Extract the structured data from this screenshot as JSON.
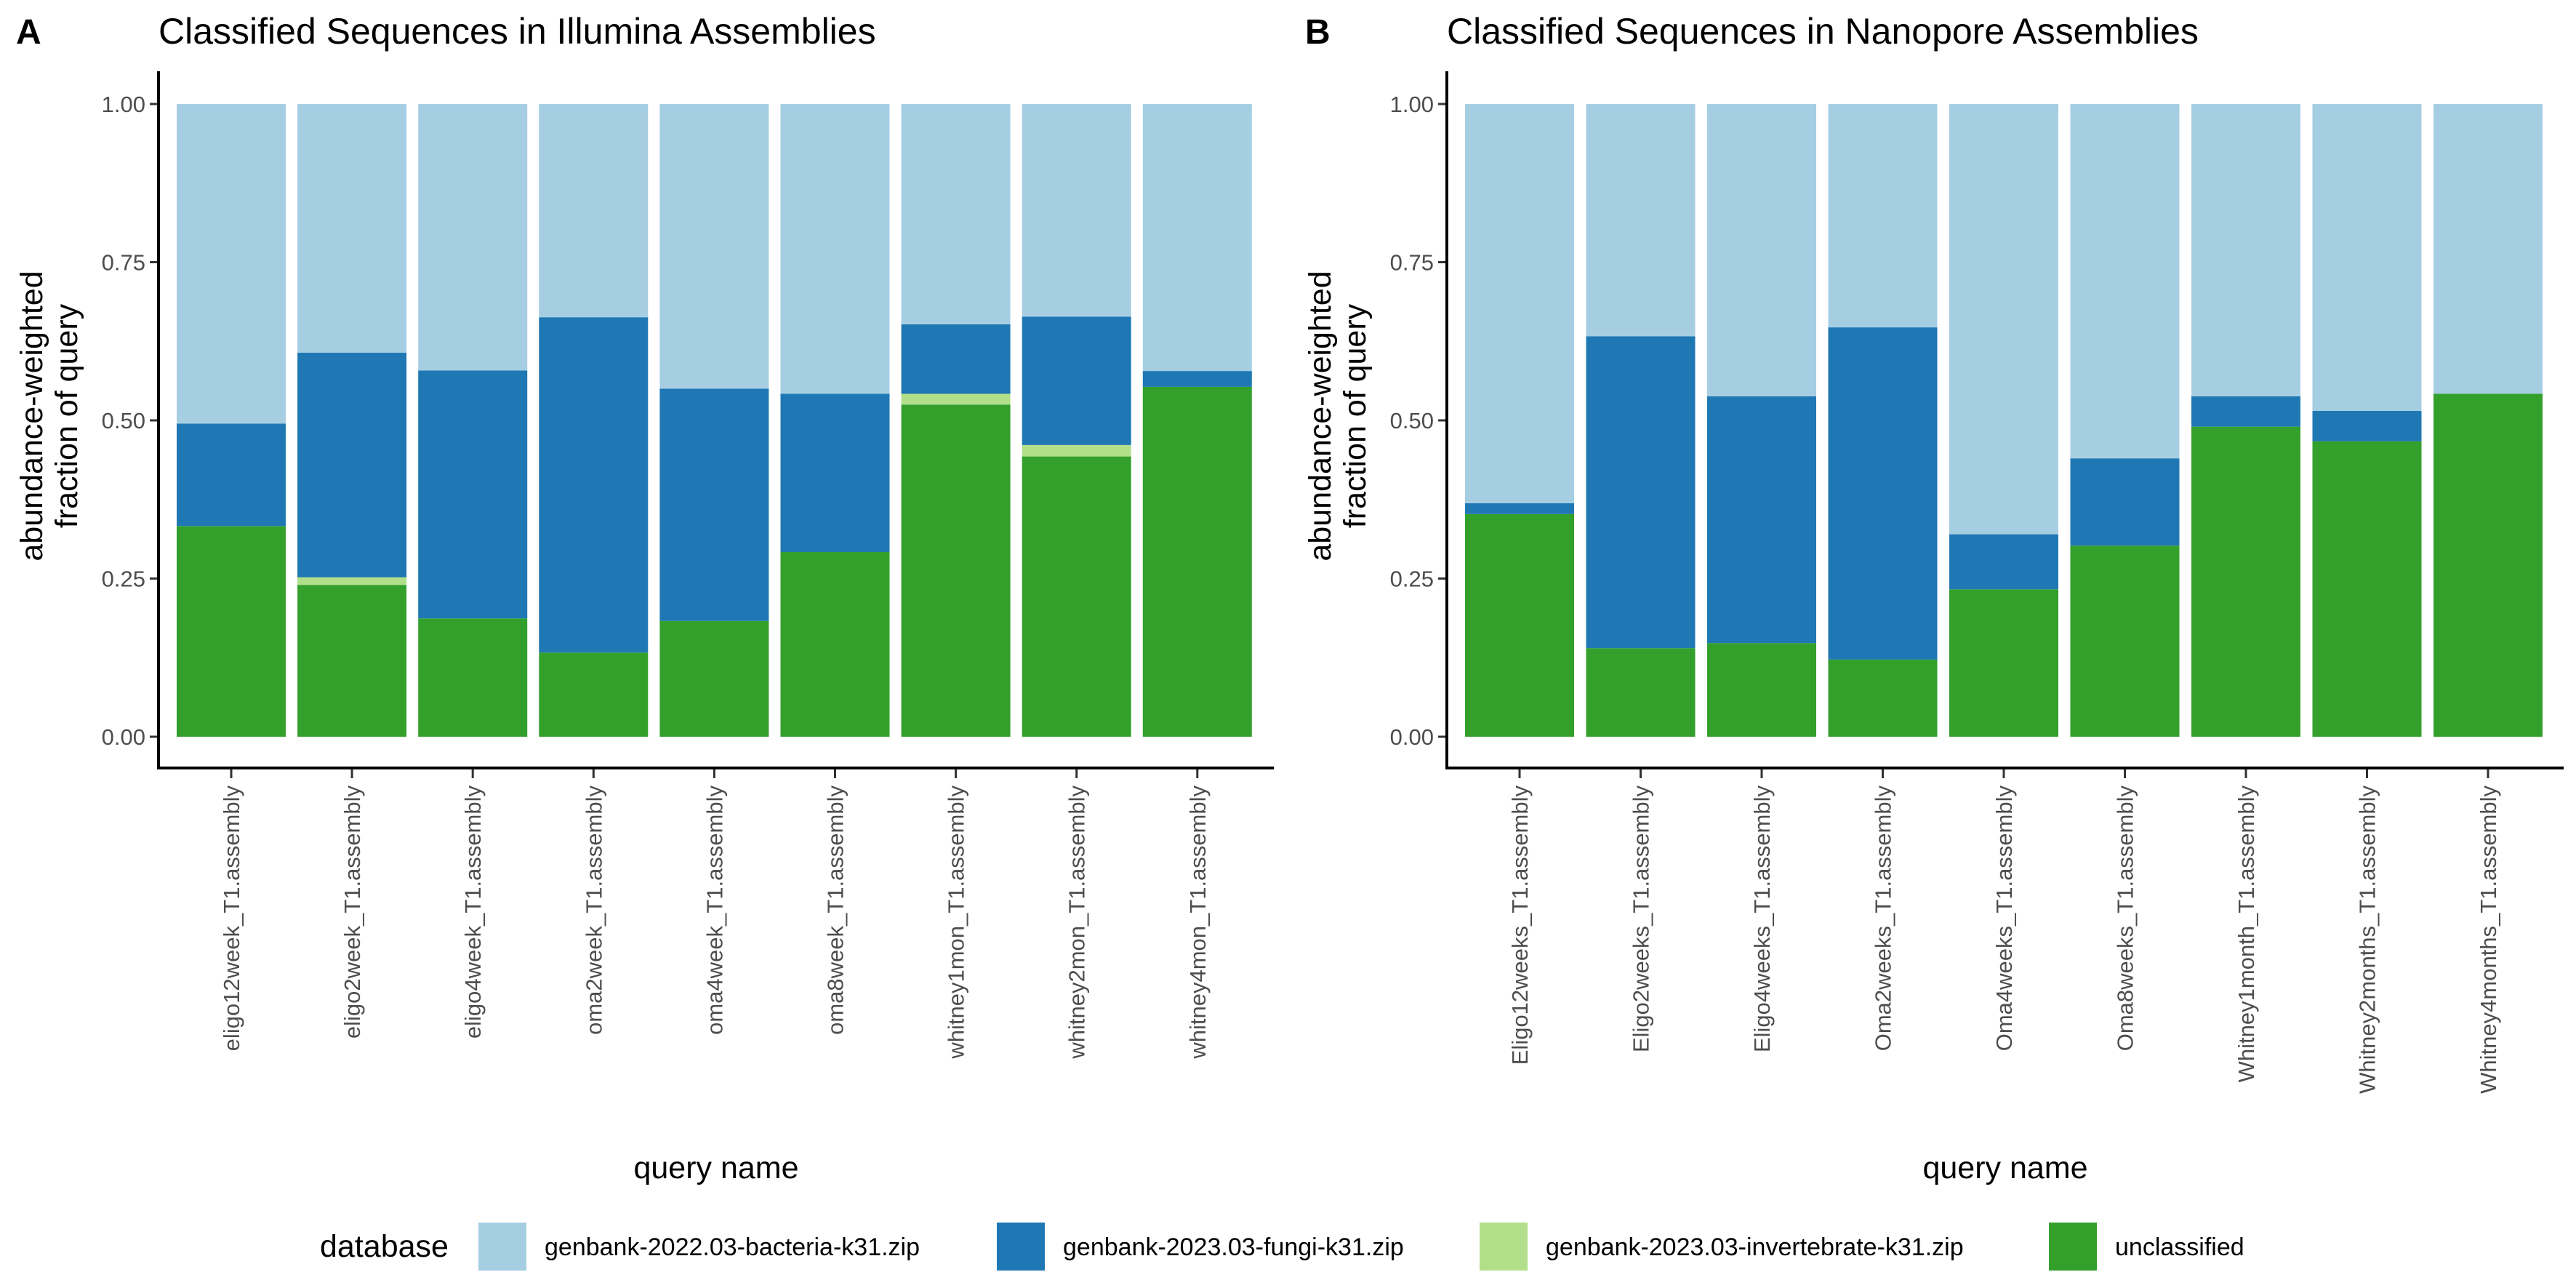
{
  "colors": {
    "genbank-2022.03-bacteria-k31.zip": "#a6cee3",
    "genbank-2023.03-fungi-k31.zip": "#1f78b4",
    "genbank-2023.03-invertebrate-k31.zip": "#b2df8a",
    "unclassified": "#33a02c"
  },
  "legend": {
    "title": "database",
    "items": [
      "genbank-2022.03-bacteria-k31.zip",
      "genbank-2023.03-fungi-k31.zip",
      "genbank-2023.03-invertebrate-k31.zip",
      "unclassified"
    ],
    "position": "bottom"
  },
  "chart_data": [
    {
      "type": "bar",
      "stacked": true,
      "panel": "A",
      "title": "Classified Sequences in Illumina Assemblies",
      "xlabel": "query name",
      "ylabel": "abundance-weighted fraction of query",
      "ylabel_lines": [
        "abundance-weighted",
        "fraction of query"
      ],
      "ylim": [
        0,
        1
      ],
      "yticks": [
        "0.00",
        "0.25",
        "0.50",
        "0.75",
        "1.00"
      ],
      "grid": false,
      "categories": [
        "eligo12week_T1.assembly",
        "eligo2week_T1.assembly",
        "eligo4week_T1.assembly",
        "oma2week_T1.assembly",
        "oma4week_T1.assembly",
        "oma8week_T1.assembly",
        "whitney1mon_T1.assembly",
        "whitney2mon_T1.assembly",
        "whitney4mon_T1.assembly"
      ],
      "series": [
        {
          "name": "unclassified",
          "values": [
            0.333,
            0.24,
            0.187,
            0.133,
            0.183,
            0.292,
            0.525,
            0.443,
            0.553
          ]
        },
        {
          "name": "genbank-2023.03-invertebrate-k31.zip",
          "values": [
            0.0,
            0.012,
            0.0,
            0.0,
            0.0,
            0.0,
            0.017,
            0.018,
            0.0
          ]
        },
        {
          "name": "genbank-2023.03-fungi-k31.zip",
          "values": [
            0.162,
            0.355,
            0.392,
            0.53,
            0.367,
            0.25,
            0.11,
            0.203,
            0.025
          ]
        },
        {
          "name": "genbank-2022.03-bacteria-k31.zip",
          "values": [
            0.505,
            0.393,
            0.421,
            0.337,
            0.45,
            0.458,
            0.348,
            0.336,
            0.422
          ]
        }
      ]
    },
    {
      "type": "bar",
      "stacked": true,
      "panel": "B",
      "title": "Classified Sequences in Nanopore Assemblies",
      "xlabel": "query name",
      "ylabel": "abundance-weighted fraction of query",
      "ylabel_lines": [
        "abundance-weighted",
        "fraction of query"
      ],
      "ylim": [
        0,
        1
      ],
      "yticks": [
        "0.00",
        "0.25",
        "0.50",
        "0.75",
        "1.00"
      ],
      "grid": false,
      "categories": [
        "Eligo12weeks_T1.assembly",
        "Eligo2weeks_T1.assembly",
        "Eligo4weeks_T1.assembly",
        "Oma2weeks_T1.assembly",
        "Oma4weeks_T1.assembly",
        "Oma8weeks_T1.assembly",
        "Whitney1month_T1.assembly",
        "Whitney2months_T1.assembly",
        "Whitney4months_T1.assembly"
      ],
      "series": [
        {
          "name": "unclassified",
          "values": [
            0.352,
            0.14,
            0.148,
            0.122,
            0.233,
            0.302,
            0.49,
            0.467,
            0.542
          ]
        },
        {
          "name": "genbank-2023.03-invertebrate-k31.zip",
          "values": [
            0.0,
            0.0,
            0.0,
            0.0,
            0.0,
            0.0,
            0.0,
            0.0,
            0.0
          ]
        },
        {
          "name": "genbank-2023.03-fungi-k31.zip",
          "values": [
            0.017,
            0.493,
            0.39,
            0.525,
            0.087,
            0.138,
            0.048,
            0.048,
            0.0
          ]
        },
        {
          "name": "genbank-2022.03-bacteria-k31.zip",
          "values": [
            0.631,
            0.367,
            0.462,
            0.353,
            0.68,
            0.56,
            0.462,
            0.485,
            0.458
          ]
        }
      ]
    }
  ]
}
